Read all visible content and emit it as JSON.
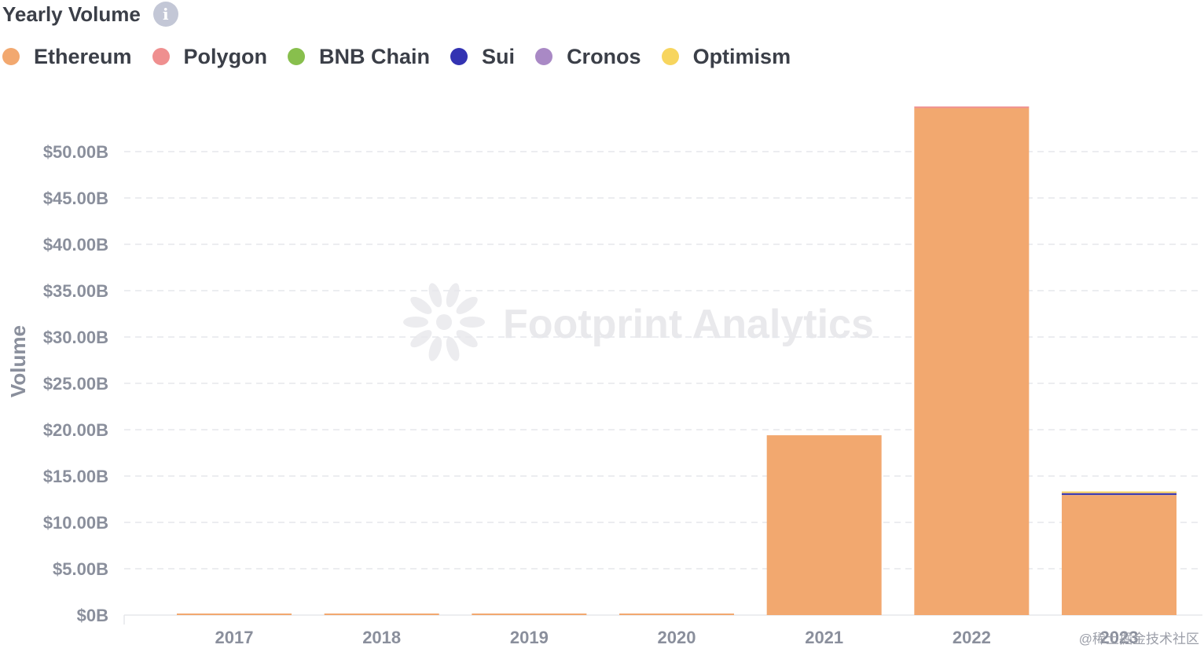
{
  "header": {
    "title": "Yearly Volume",
    "info_icon": "info-icon"
  },
  "legend": [
    {
      "label": "Ethereum",
      "color": "#f2a86f"
    },
    {
      "label": "Polygon",
      "color": "#ef8f8f"
    },
    {
      "label": "BNB Chain",
      "color": "#88bf4d"
    },
    {
      "label": "Sui",
      "color": "#3333b2"
    },
    {
      "label": "Cronos",
      "color": "#a989c5"
    },
    {
      "label": "Optimism",
      "color": "#f7d55e"
    }
  ],
  "watermark": "Footprint Analytics",
  "corner_mark": "@稀土掘金技术社区",
  "chart_data": {
    "type": "bar",
    "stacked": true,
    "title": "Yearly Volume",
    "xlabel": "",
    "ylabel": "Volume",
    "ylim": [
      0,
      55
    ],
    "yticks": [
      "$0B",
      "$5.00B",
      "$10.00B",
      "$15.00B",
      "$20.00B",
      "$25.00B",
      "$30.00B",
      "$35.00B",
      "$40.00B",
      "$45.00B",
      "$50.00B"
    ],
    "ytick_values": [
      0,
      5,
      10,
      15,
      20,
      25,
      30,
      35,
      40,
      45,
      50
    ],
    "grid": true,
    "legend_position": "top-left",
    "categories": [
      "2017",
      "2018",
      "2019",
      "2020",
      "2021",
      "2022",
      "2023"
    ],
    "series": [
      {
        "name": "Ethereum",
        "color": "#f2a86f",
        "values": [
          0.1,
          0.1,
          0.1,
          0.1,
          19.4,
          54.7,
          12.9
        ]
      },
      {
        "name": "Polygon",
        "color": "#ef8f8f",
        "values": [
          0,
          0,
          0,
          0,
          0,
          0.1,
          0.05
        ]
      },
      {
        "name": "BNB Chain",
        "color": "#88bf4d",
        "values": [
          0,
          0,
          0,
          0,
          0,
          0,
          0.02
        ]
      },
      {
        "name": "Sui",
        "color": "#3333b2",
        "values": [
          0,
          0,
          0,
          0,
          0,
          0,
          0.15
        ]
      },
      {
        "name": "Cronos",
        "color": "#a989c5",
        "values": [
          0,
          0,
          0,
          0,
          0,
          0,
          0.05
        ]
      },
      {
        "name": "Optimism",
        "color": "#f7d55e",
        "values": [
          0,
          0,
          0,
          0,
          0,
          0,
          0.02
        ]
      }
    ]
  }
}
